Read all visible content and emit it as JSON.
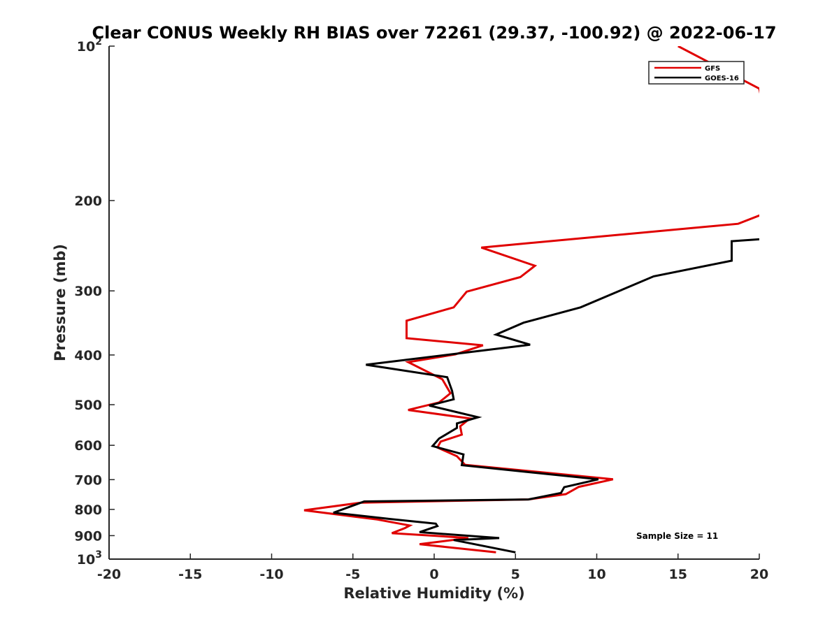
{
  "chart_data": {
    "type": "line",
    "orientation": "vertical-profile",
    "title": "Clear CONUS Weekly RH BIAS over 72261 (29.37, -100.92) @ 2022-06-17",
    "xlabel": "Relative Humidity (%)",
    "ylabel": "Pressure (mb)",
    "xlim": [
      -20,
      20
    ],
    "ylim": [
      100,
      1000
    ],
    "yscale": "log",
    "y_reversed": true,
    "grid": false,
    "legend_position": "top-right",
    "x_ticks": [
      "-20",
      "-15",
      "-10",
      "-5",
      "0",
      "5",
      "10",
      "15",
      "20"
    ],
    "y_ticks": [
      {
        "value": 100,
        "base": "10",
        "exp": "2"
      },
      {
        "value": 200,
        "label": "200"
      },
      {
        "value": 300,
        "label": "300"
      },
      {
        "value": 400,
        "label": "400"
      },
      {
        "value": 500,
        "label": "500"
      },
      {
        "value": 600,
        "label": "600"
      },
      {
        "value": 700,
        "label": "700"
      },
      {
        "value": 800,
        "label": "800"
      },
      {
        "value": 900,
        "label": "900"
      },
      {
        "value": 1000,
        "base": "10",
        "exp": "3"
      }
    ],
    "annotation": "Sample Size = 11",
    "series": [
      {
        "name": "GFS",
        "color": "#e00000",
        "points": [
          [
            15.0,
            100
          ],
          [
            20.0,
            121
          ],
          [
            21.5,
            205
          ],
          [
            18.7,
            222
          ],
          [
            2.9,
            247
          ],
          [
            6.2,
            268
          ],
          [
            5.3,
            282
          ],
          [
            2.0,
            301
          ],
          [
            1.2,
            323
          ],
          [
            -1.7,
            343
          ],
          [
            -1.7,
            371
          ],
          [
            3.0,
            383
          ],
          [
            1.3,
            399
          ],
          [
            -1.6,
            413
          ],
          [
            0.5,
            446
          ],
          [
            1.0,
            475
          ],
          [
            0.3,
            495
          ],
          [
            -1.6,
            512
          ],
          [
            2.2,
            532
          ],
          [
            1.6,
            551
          ],
          [
            1.7,
            572
          ],
          [
            0.4,
            590
          ],
          [
            0.2,
            606
          ],
          [
            1.4,
            630
          ],
          [
            1.9,
            655
          ],
          [
            11.0,
            699
          ],
          [
            8.9,
            723
          ],
          [
            8.1,
            747
          ],
          [
            5.8,
            765
          ],
          [
            -4.5,
            776
          ],
          [
            -8.0,
            803
          ],
          [
            -3.5,
            837
          ],
          [
            -1.5,
            860
          ],
          [
            -1.8,
            870
          ],
          [
            -2.6,
            890
          ],
          [
            1.1,
            905
          ],
          [
            2.1,
            910
          ],
          [
            -0.9,
            935
          ],
          [
            3.8,
            970
          ]
        ]
      },
      {
        "name": "GOES-16",
        "color": "#000000",
        "points": [
          [
            20.0,
            238
          ],
          [
            18.3,
            240
          ],
          [
            18.3,
            262
          ],
          [
            13.5,
            281
          ],
          [
            9.0,
            323
          ],
          [
            5.5,
            346
          ],
          [
            3.8,
            365
          ],
          [
            5.9,
            382
          ],
          [
            -4.2,
            418
          ],
          [
            0.8,
            442
          ],
          [
            1.1,
            470
          ],
          [
            1.2,
            488
          ],
          [
            -0.3,
            502
          ],
          [
            2.7,
            529
          ],
          [
            1.4,
            544
          ],
          [
            1.4,
            555
          ],
          [
            0.3,
            582
          ],
          [
            -0.1,
            602
          ],
          [
            1.8,
            625
          ],
          [
            1.7,
            656
          ],
          [
            10.1,
            699
          ],
          [
            8.0,
            724
          ],
          [
            7.8,
            743
          ],
          [
            5.8,
            765
          ],
          [
            -4.3,
            772
          ],
          [
            -6.2,
            812
          ],
          [
            -2.6,
            836
          ],
          [
            0.1,
            853
          ],
          [
            0.2,
            862
          ],
          [
            -0.9,
            886
          ],
          [
            4.0,
            910
          ],
          [
            1.2,
            918
          ],
          [
            5.0,
            970
          ]
        ]
      }
    ]
  }
}
